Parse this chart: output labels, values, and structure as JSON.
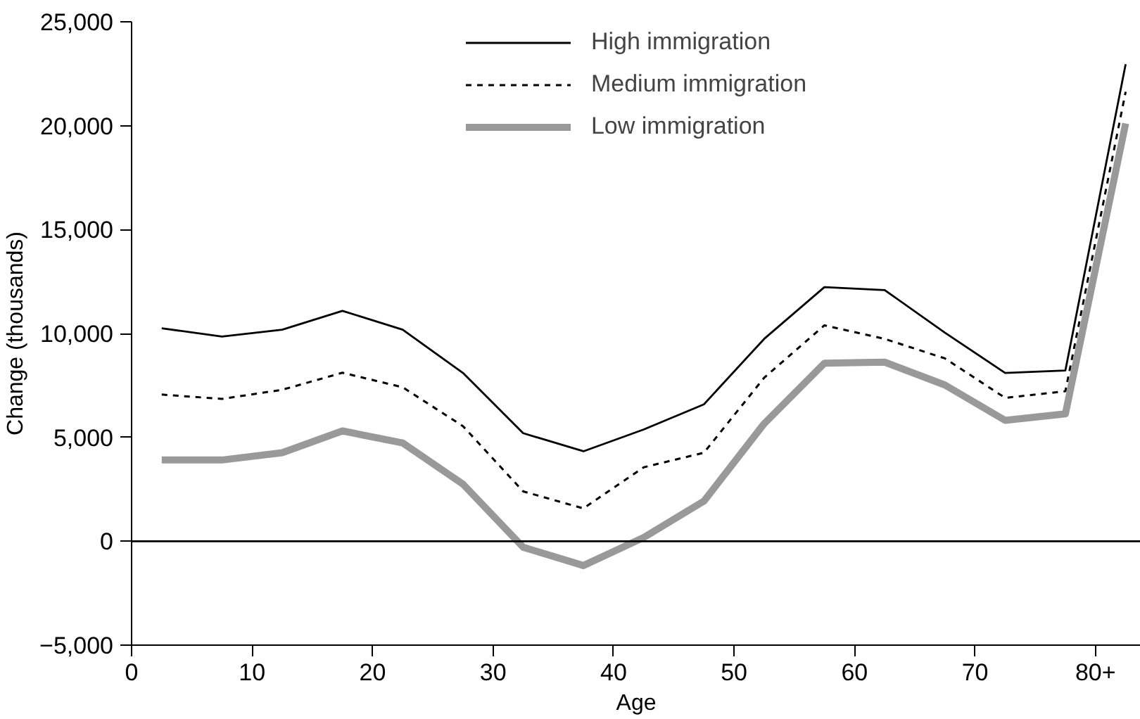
{
  "chart_data": {
    "type": "line",
    "xlabel": "Age",
    "ylabel": "Change (thousands)",
    "x": [
      2.5,
      7.5,
      12.5,
      17.5,
      22.5,
      27.5,
      32.5,
      37.5,
      42.5,
      47.5,
      52.5,
      57.5,
      62.5,
      67.5,
      72.5,
      77.5,
      82.5
    ],
    "series": [
      {
        "name": "High immigration",
        "color": "#000000",
        "line_style": "solid",
        "values": [
          10250,
          9850,
          10180,
          11090,
          10180,
          8100,
          5200,
          4330,
          5380,
          6590,
          9740,
          12230,
          12090,
          10040,
          8100,
          8220,
          22960
        ]
      },
      {
        "name": "Medium immigration",
        "color": "#000000",
        "line_style": "dashed",
        "values": [
          7060,
          6850,
          7290,
          8110,
          7410,
          5540,
          2400,
          1580,
          3560,
          4260,
          7870,
          10390,
          9740,
          8800,
          6900,
          7220,
          21630
        ]
      },
      {
        "name": "Low immigration",
        "color": "#999999",
        "line_style": "solid",
        "values": [
          3910,
          3910,
          4260,
          5310,
          4730,
          2750,
          -290,
          -1170,
          180,
          1930,
          5660,
          8570,
          8620,
          7520,
          5820,
          6130,
          20110
        ]
      }
    ],
    "xlim": [
      0,
      83.75
    ],
    "xticks": [
      0,
      10,
      20,
      30,
      40,
      50,
      60,
      70,
      {
        "value": 80,
        "label": "80+"
      }
    ],
    "ylim": [
      -5000,
      25000
    ],
    "yticks": [
      {
        "value": -5000,
        "label": "−5,000"
      },
      {
        "value": 0,
        "label": "0"
      },
      {
        "value": 5000,
        "label": "5,000"
      },
      {
        "value": 10000,
        "label": "10,000"
      },
      {
        "value": 15000,
        "label": "15,000"
      },
      {
        "value": 20000,
        "label": "20,000"
      },
      {
        "value": 25000,
        "label": "25,000"
      }
    ],
    "ref_lines": [
      {
        "axis": "y",
        "value": 0,
        "color": "#000000"
      }
    ],
    "grid": false,
    "legend": "top",
    "marker": "none"
  }
}
